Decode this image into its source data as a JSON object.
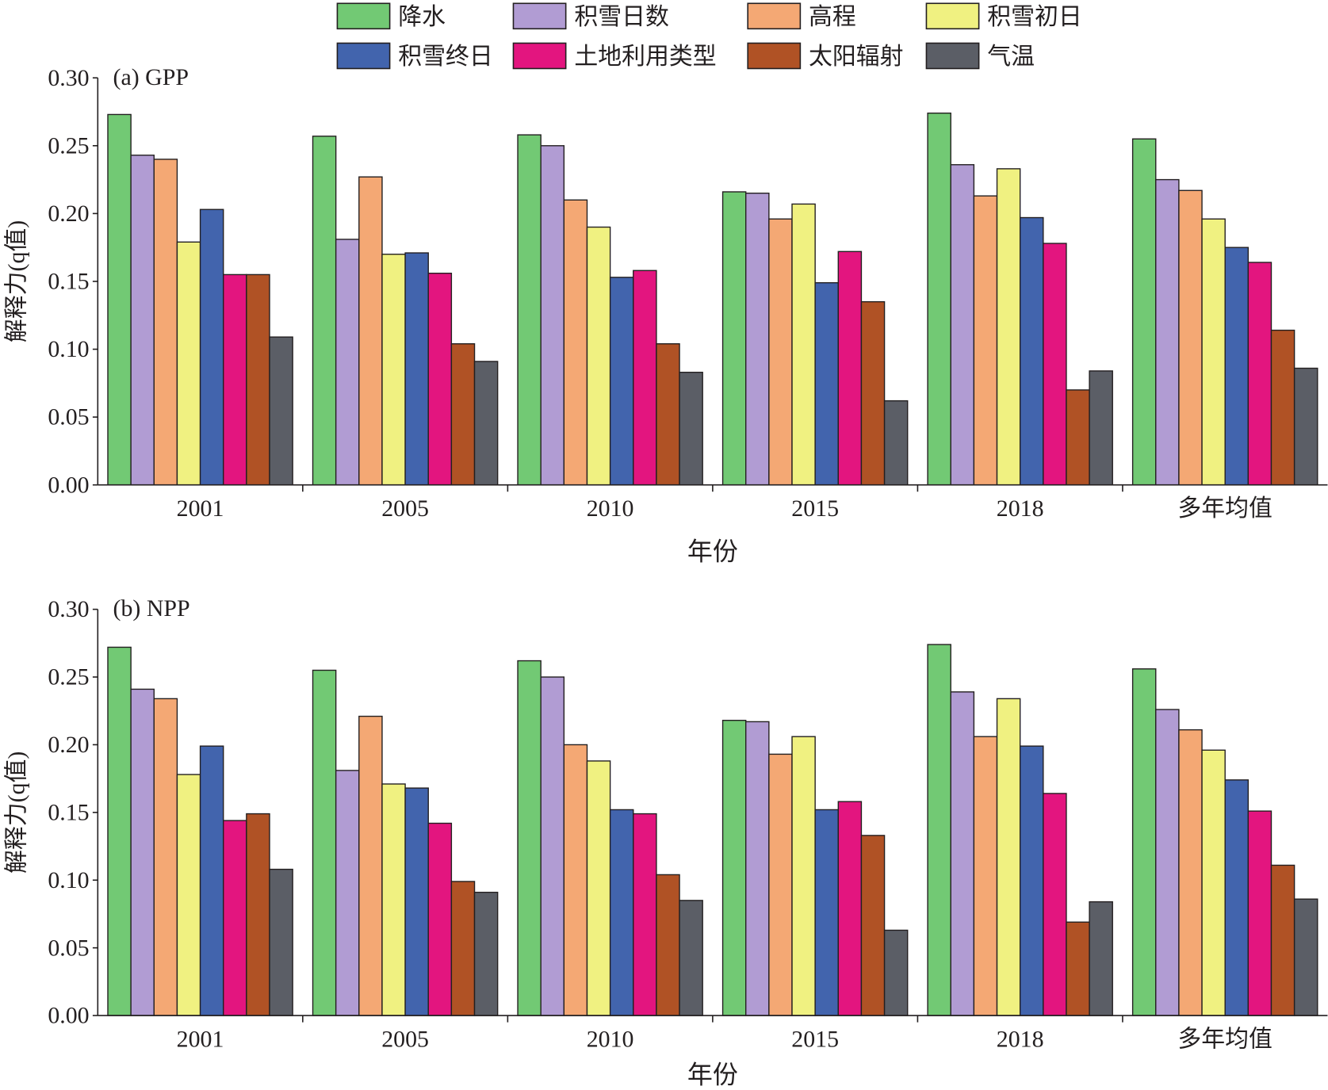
{
  "legend": {
    "placement": "top",
    "items": [
      {
        "name": "降水",
        "color": "#72c974"
      },
      {
        "name": "积雪日数",
        "color": "#b19cd3"
      },
      {
        "name": "高程",
        "color": "#f4a874"
      },
      {
        "name": "积雪初日",
        "color": "#f0f181"
      },
      {
        "name": "积雪终日",
        "color": "#4264ad"
      },
      {
        "name": "土地利用类型",
        "color": "#e3157f"
      },
      {
        "name": "太阳辐射",
        "color": "#b05225"
      },
      {
        "name": "气温",
        "color": "#5b5e66"
      }
    ]
  },
  "chart_data": [
    {
      "type": "bar",
      "title": "(a) GPP",
      "xlabel": "年份",
      "ylabel": "解释力(q值)",
      "ylim": [
        0,
        0.3
      ],
      "yticks": [
        "0.00",
        "0.05",
        "0.10",
        "0.15",
        "0.20",
        "0.25",
        "0.30"
      ],
      "grid": false,
      "categories": [
        "2001",
        "2005",
        "2010",
        "2015",
        "2018",
        "多年均值"
      ],
      "series": [
        {
          "name": "降水",
          "values": [
            0.273,
            0.257,
            0.258,
            0.216,
            0.274,
            0.255
          ]
        },
        {
          "name": "积雪日数",
          "values": [
            0.243,
            0.181,
            0.25,
            0.215,
            0.236,
            0.225
          ]
        },
        {
          "name": "高程",
          "values": [
            0.24,
            0.227,
            0.21,
            0.196,
            0.213,
            0.217
          ]
        },
        {
          "name": "积雪初日",
          "values": [
            0.179,
            0.17,
            0.19,
            0.207,
            0.233,
            0.196
          ]
        },
        {
          "name": "积雪终日",
          "values": [
            0.203,
            0.171,
            0.153,
            0.149,
            0.197,
            0.175
          ]
        },
        {
          "name": "土地利用类型",
          "values": [
            0.155,
            0.156,
            0.158,
            0.172,
            0.178,
            0.164
          ]
        },
        {
          "name": "太阳辐射",
          "values": [
            0.155,
            0.104,
            0.104,
            0.135,
            0.07,
            0.114
          ]
        },
        {
          "name": "气温",
          "values": [
            0.109,
            0.091,
            0.083,
            0.062,
            0.084,
            0.086
          ]
        }
      ]
    },
    {
      "type": "bar",
      "title": "(b) NPP",
      "xlabel": "年份",
      "ylabel": "解释力(q值)",
      "ylim": [
        0,
        0.3
      ],
      "yticks": [
        "0.00",
        "0.05",
        "0.10",
        "0.15",
        "0.20",
        "0.25",
        "0.30"
      ],
      "grid": false,
      "categories": [
        "2001",
        "2005",
        "2010",
        "2015",
        "2018",
        "多年均值"
      ],
      "series": [
        {
          "name": "降水",
          "values": [
            0.272,
            0.255,
            0.262,
            0.218,
            0.274,
            0.256
          ]
        },
        {
          "name": "积雪日数",
          "values": [
            0.241,
            0.181,
            0.25,
            0.217,
            0.239,
            0.226
          ]
        },
        {
          "name": "高程",
          "values": [
            0.234,
            0.221,
            0.2,
            0.193,
            0.206,
            0.211
          ]
        },
        {
          "name": "积雪初日",
          "values": [
            0.178,
            0.171,
            0.188,
            0.206,
            0.234,
            0.196
          ]
        },
        {
          "name": "积雪终日",
          "values": [
            0.199,
            0.168,
            0.152,
            0.152,
            0.199,
            0.174
          ]
        },
        {
          "name": "土地利用类型",
          "values": [
            0.144,
            0.142,
            0.149,
            0.158,
            0.164,
            0.151
          ]
        },
        {
          "name": "太阳辐射",
          "values": [
            0.149,
            0.099,
            0.104,
            0.133,
            0.069,
            0.111
          ]
        },
        {
          "name": "气温",
          "values": [
            0.108,
            0.091,
            0.085,
            0.063,
            0.084,
            0.086
          ]
        }
      ]
    }
  ]
}
